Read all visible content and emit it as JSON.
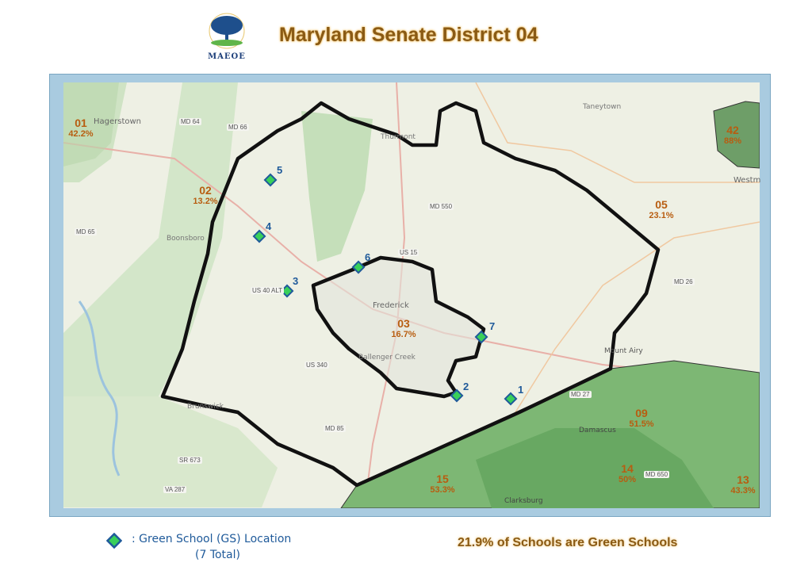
{
  "header": {
    "logo_text": "MAEOE",
    "title": "Maryland Senate District 04"
  },
  "map": {
    "colors": {
      "outline": "#111111",
      "green_district": "#6aaa64",
      "marker_fill": "#39d05a",
      "marker_border": "#1f5a9a",
      "label": "#b85d10"
    },
    "districts": [
      {
        "id": "01",
        "pct": "42.2%"
      },
      {
        "id": "02",
        "pct": "13.2%"
      },
      {
        "id": "03",
        "pct": "16.7%"
      },
      {
        "id": "05",
        "pct": "23.1%"
      },
      {
        "id": "09",
        "pct": "51.5%"
      },
      {
        "id": "13",
        "pct": "43.3%"
      },
      {
        "id": "14",
        "pct": "50%"
      },
      {
        "id": "15",
        "pct": "53.3%"
      },
      {
        "id": "42",
        "pct": "88%"
      }
    ],
    "schools": [
      "1",
      "2",
      "3",
      "4",
      "5",
      "6",
      "7"
    ],
    "place_names": [
      "Hagerstown",
      "Boonsboro",
      "Thurmont",
      "Taneytown",
      "Westm",
      "Frederick",
      "Ballenger Creek",
      "Brunswick",
      "Mount Airy",
      "Damascus",
      "Clarksburg"
    ],
    "roads": [
      "MD 64",
      "MD 66",
      "MD 65",
      "MD 550",
      "US 15",
      "US 40 ALT",
      "US 340",
      "MD 27",
      "MD 26",
      "MD 85",
      "SR 673",
      "VA 287",
      "MD 650"
    ]
  },
  "legend": {
    "marker_icon": "green-diamond",
    "label": ":  Green School (GS) Location",
    "total": "(7 Total)"
  },
  "summary": "21.9%  of Schools are Green Schools"
}
